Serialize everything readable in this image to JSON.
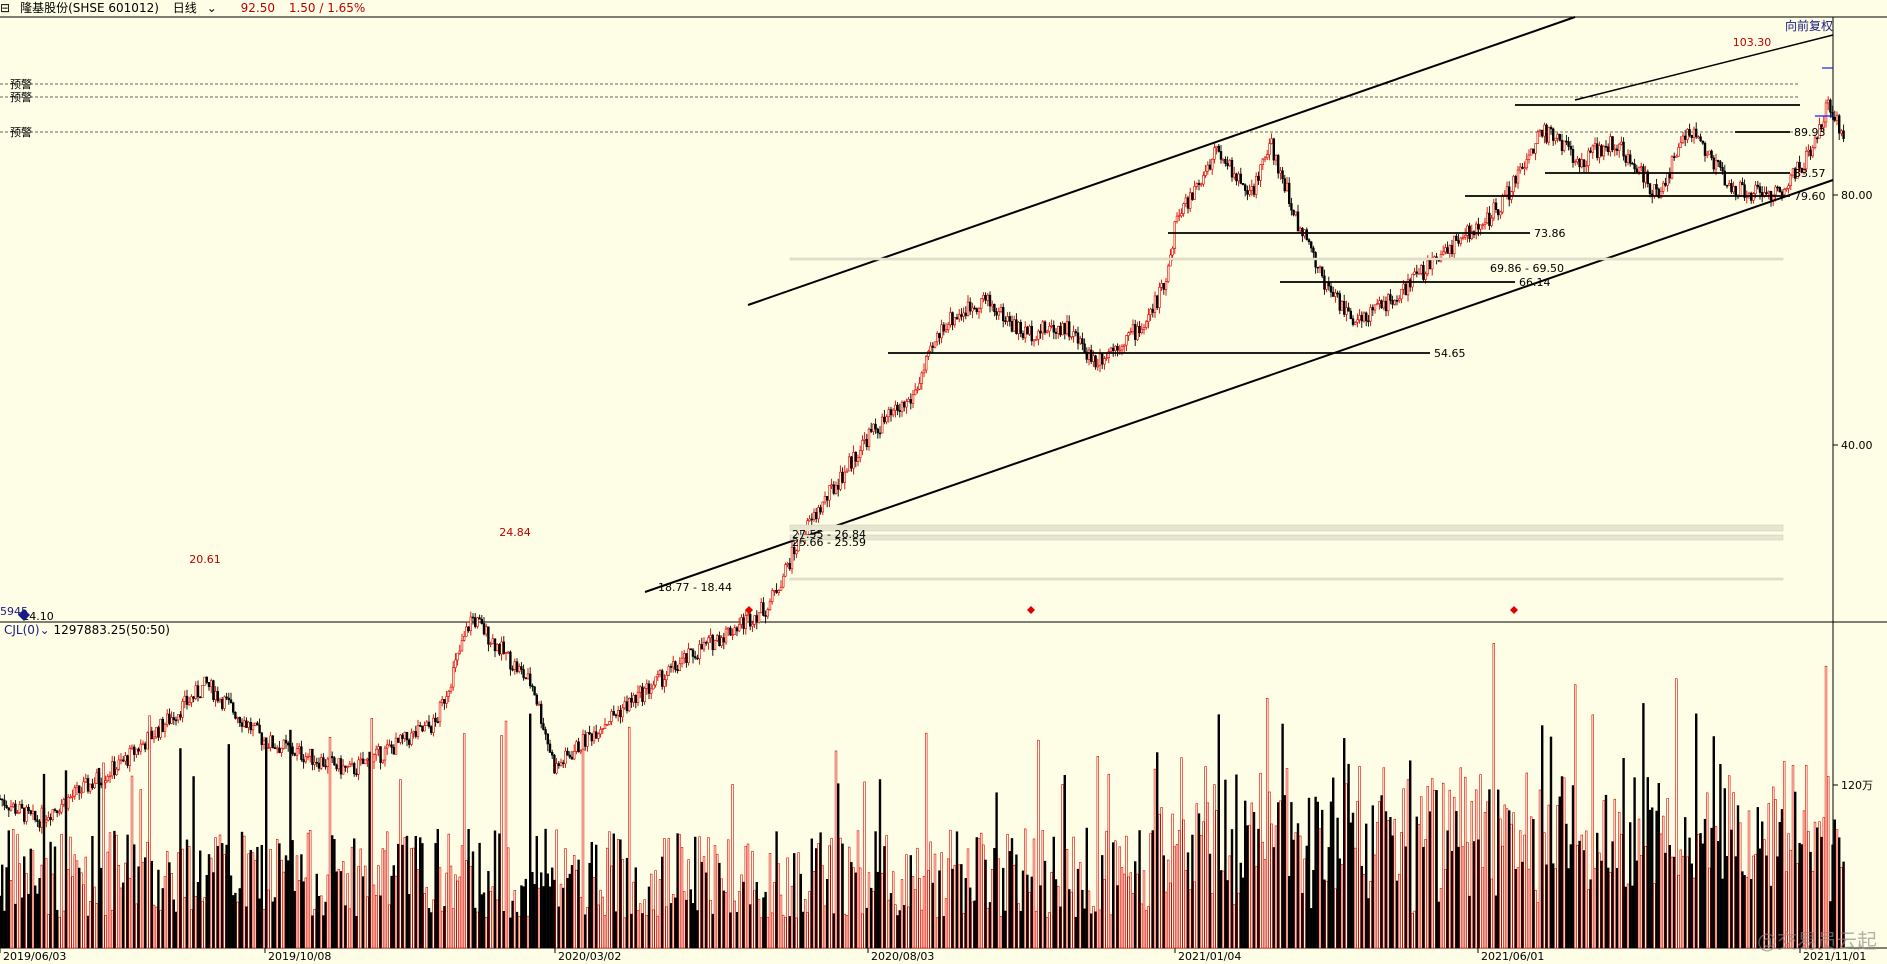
{
  "header": {
    "stock_label": "隆基股份(SHSE 601012)",
    "period_label": "日线",
    "price": "92.50",
    "change": "1.50 / 1.65%"
  },
  "volume_header": {
    "indicator": "CJL(0)",
    "value": "1297883.25(50:50)"
  },
  "adjust_button": "向前复权",
  "watermark": "@交易员云起",
  "colors": {
    "up": "#E00000",
    "down": "#000000",
    "bg": "#FEFEE6",
    "text_red": "#C00000",
    "navy": "#1a1a80"
  },
  "chart_data": {
    "type": "candlestick",
    "x_ticks": [
      "2019/06/03",
      "2019/10/08",
      "2020/03/02",
      "2020/08/03",
      "2021/01/04",
      "2021/06/01",
      "2021/11/01"
    ],
    "y_ticks": [
      40.0,
      80.0
    ],
    "y_scale": "log",
    "volume_tick": "120万",
    "price_path": [
      {
        "date": "2019/06/03",
        "price": 15.0
      },
      {
        "date": "2019/06/20",
        "price": 14.1
      },
      {
        "date": "2019/08/01",
        "price": 16.6
      },
      {
        "date": "2019/09/10",
        "price": 20.61
      },
      {
        "date": "2019/10/08",
        "price": 17.6
      },
      {
        "date": "2019/11/20",
        "price": 16.2
      },
      {
        "date": "2020/01/02",
        "price": 18.5
      },
      {
        "date": "2020/01/20",
        "price": 24.84
      },
      {
        "date": "2020/02/20",
        "price": 20.5
      },
      {
        "date": "2020/03/02",
        "price": 16.3
      },
      {
        "date": "2020/03/25",
        "price": 18.44
      },
      {
        "date": "2020/05/10",
        "price": 22.5
      },
      {
        "date": "2020/06/15",
        "price": 25.6
      },
      {
        "date": "2020/07/01",
        "price": 31.0
      },
      {
        "date": "2020/08/03",
        "price": 41.0
      },
      {
        "date": "2020/08/25",
        "price": 45.5
      },
      {
        "date": "2020/09/10",
        "price": 56.0
      },
      {
        "date": "2020/09/30",
        "price": 60.0
      },
      {
        "date": "2020/10/20",
        "price": 54.5
      },
      {
        "date": "2020/11/10",
        "price": 55.6
      },
      {
        "date": "2020/11/25",
        "price": 50.5
      },
      {
        "date": "2020/12/20",
        "price": 56.0
      },
      {
        "date": "2020/12/31",
        "price": 63.0
      },
      {
        "date": "2021/01/04",
        "price": 73.86
      },
      {
        "date": "2021/01/25",
        "price": 91.0
      },
      {
        "date": "2021/02/10",
        "price": 80.0
      },
      {
        "date": "2021/02/20",
        "price": 92.0
      },
      {
        "date": "2021/03/05",
        "price": 73.86
      },
      {
        "date": "2021/03/20",
        "price": 61.5
      },
      {
        "date": "2021/04/02",
        "price": 55.5
      },
      {
        "date": "2021/04/20",
        "price": 60.0
      },
      {
        "date": "2021/05/10",
        "price": 66.14
      },
      {
        "date": "2021/05/25",
        "price": 71.5
      },
      {
        "date": "2021/06/01",
        "price": 72.5
      },
      {
        "date": "2021/06/15",
        "price": 80.0
      },
      {
        "date": "2021/07/01",
        "price": 96.0
      },
      {
        "date": "2021/07/20",
        "price": 88.0
      },
      {
        "date": "2021/08/05",
        "price": 93.0
      },
      {
        "date": "2021/08/25",
        "price": 80.0
      },
      {
        "date": "2021/09/10",
        "price": 96.0
      },
      {
        "date": "2021/10/01",
        "price": 81.0
      },
      {
        "date": "2021/10/20",
        "price": 80.0
      },
      {
        "date": "2021/11/05",
        "price": 89.0
      },
      {
        "date": "2021/11/15",
        "price": 103.3
      },
      {
        "date": "2021/11/22",
        "price": 92.5
      }
    ],
    "annotations": [
      {
        "text": "20.61"
      },
      {
        "text": "24.84"
      },
      {
        "text": "14.10"
      },
      {
        "text": "103.30"
      },
      {
        "text": "89.93"
      },
      {
        "text": "83.57"
      },
      {
        "text": "79.60"
      },
      {
        "text": "73.86"
      },
      {
        "text": "69.86 - 69.50"
      },
      {
        "text": "66.14"
      },
      {
        "text": "54.65"
      },
      {
        "text": "27.55 - 26.84"
      },
      {
        "text": "25.66 - 25.59"
      },
      {
        "text": "18.77 - 18.44"
      },
      {
        "text": "5945"
      }
    ],
    "alert_labels": [
      "预警",
      "预警",
      "预警"
    ]
  }
}
